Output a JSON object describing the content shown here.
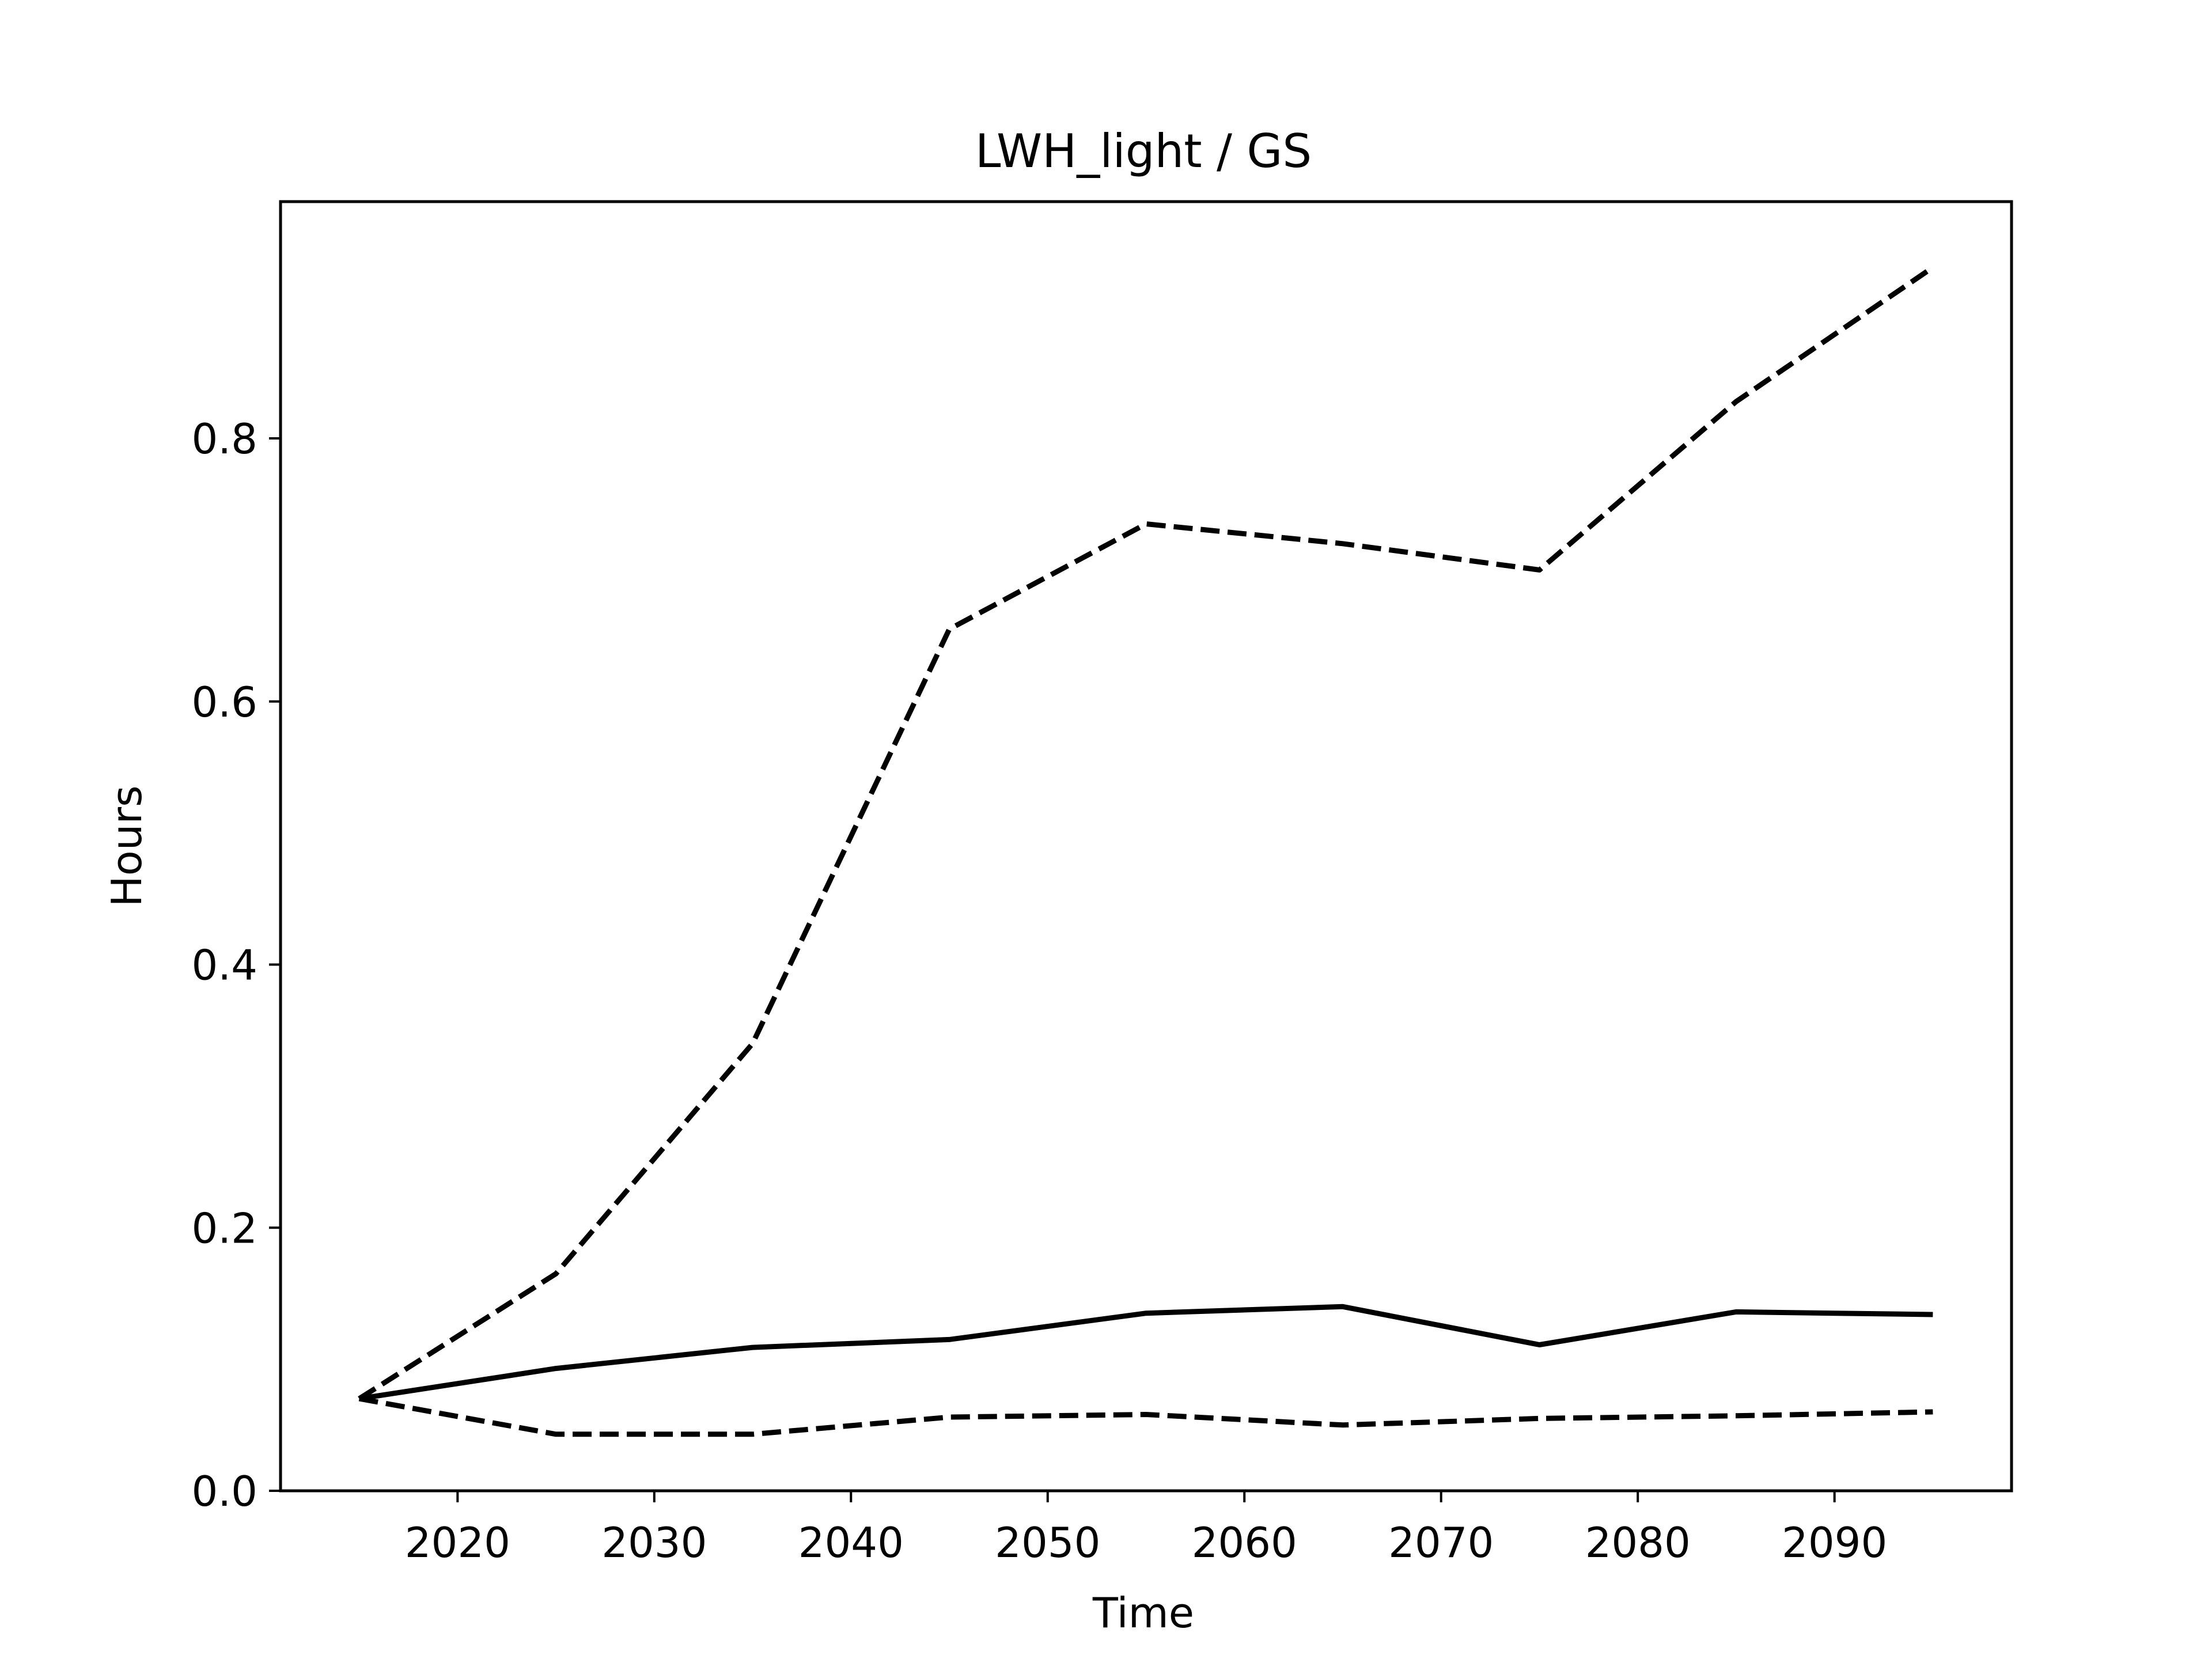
{
  "chart_data": {
    "type": "line",
    "title": "LWH_light / GS",
    "xlabel": "Time",
    "ylabel": "Hours",
    "xlim": [
      2011,
      2099
    ],
    "ylim": [
      0,
      0.98
    ],
    "x_ticks": [
      2020,
      2030,
      2040,
      2050,
      2060,
      2070,
      2080,
      2090
    ],
    "y_ticks": [
      0.0,
      0.2,
      0.4,
      0.6,
      0.8
    ],
    "grid": false,
    "legend": "none",
    "x": [
      2015,
      2025,
      2035,
      2045,
      2055,
      2065,
      2075,
      2085,
      2095
    ],
    "series": [
      {
        "line_style": "dashed",
        "color": "#000000",
        "values": [
          0.07,
          0.165,
          0.34,
          0.655,
          0.735,
          0.72,
          0.7,
          0.828,
          0.93
        ]
      },
      {
        "line_style": "solid",
        "color": "#000000",
        "values": [
          0.07,
          0.093,
          0.109,
          0.115,
          0.135,
          0.14,
          0.111,
          0.136,
          0.134
        ]
      },
      {
        "line_style": "dashed",
        "color": "#000000",
        "values": [
          0.07,
          0.043,
          0.043,
          0.056,
          0.058,
          0.05,
          0.055,
          0.057,
          0.06
        ]
      }
    ]
  }
}
